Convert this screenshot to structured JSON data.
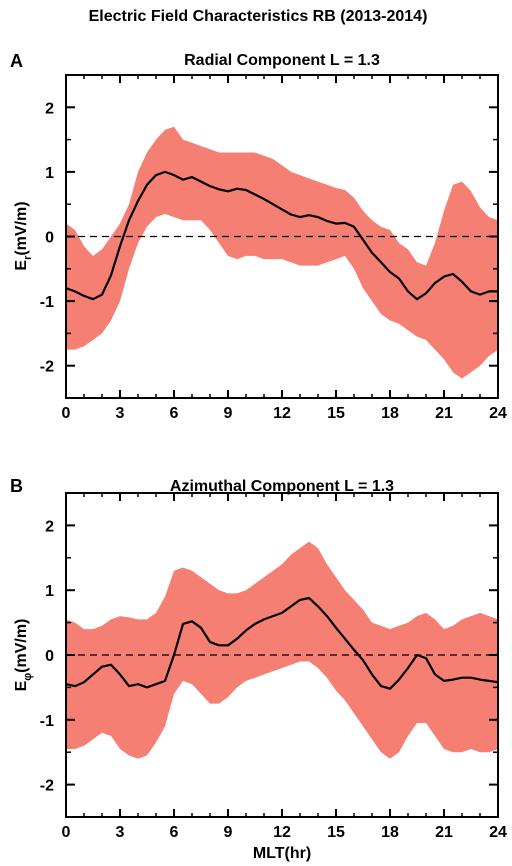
{
  "figure_title": "Electric Field Characteristics RB (2013-2014)",
  "colors": {
    "band": "#f47f72",
    "line": "#000000",
    "zero_line": "#000000"
  },
  "chart_data": [
    {
      "type": "line",
      "panel_label": "A",
      "title": "Radial Component L = 1.3",
      "ylabel_main": "E",
      "ylabel_sub": "r",
      "ylabel_tail": "(mV/m)",
      "xlabel": "",
      "xlim": [
        0,
        24
      ],
      "ylim": [
        -2.5,
        2.5
      ],
      "xticks": [
        0,
        3,
        6,
        9,
        12,
        15,
        18,
        21,
        24
      ],
      "yticks": [
        -2,
        -1,
        0,
        1,
        2
      ],
      "grid": false,
      "reference_line": {
        "y": 0,
        "style": "dashed"
      },
      "series": [
        {
          "x": [
            0,
            0.5,
            1,
            1.5,
            2,
            2.5,
            3,
            3.5,
            4,
            4.5,
            5,
            5.5,
            6,
            6.5,
            7,
            7.5,
            8,
            8.5,
            9,
            9.5,
            10,
            10.5,
            11,
            11.5,
            12,
            12.5,
            13,
            13.5,
            14,
            14.5,
            15,
            15.5,
            16,
            16.5,
            17,
            17.5,
            18,
            18.5,
            19,
            19.5,
            20,
            20.5,
            21,
            21.5,
            22,
            22.5,
            23,
            23.5,
            24
          ],
          "mean": [
            -0.8,
            -0.85,
            -0.92,
            -0.97,
            -0.9,
            -0.6,
            -0.15,
            0.25,
            0.55,
            0.8,
            0.95,
            1.0,
            0.95,
            0.88,
            0.92,
            0.85,
            0.78,
            0.73,
            0.7,
            0.74,
            0.72,
            0.65,
            0.58,
            0.5,
            0.42,
            0.34,
            0.3,
            0.33,
            0.3,
            0.24,
            0.2,
            0.21,
            0.15,
            -0.05,
            -0.25,
            -0.4,
            -0.55,
            -0.65,
            -0.85,
            -0.97,
            -0.88,
            -0.72,
            -0.62,
            -0.58,
            -0.7,
            -0.85,
            -0.9,
            -0.85,
            -0.85
          ],
          "upper": [
            0.2,
            0.1,
            -0.15,
            -0.3,
            -0.2,
            0.0,
            0.2,
            0.5,
            1.0,
            1.3,
            1.5,
            1.65,
            1.7,
            1.5,
            1.45,
            1.4,
            1.35,
            1.3,
            1.3,
            1.3,
            1.3,
            1.3,
            1.25,
            1.2,
            1.1,
            1.0,
            0.95,
            0.9,
            0.85,
            0.8,
            0.75,
            0.72,
            0.6,
            0.4,
            0.25,
            0.15,
            0.1,
            -0.1,
            -0.2,
            -0.4,
            -0.45,
            -0.1,
            0.4,
            0.8,
            0.85,
            0.7,
            0.45,
            0.3,
            0.25
          ],
          "lower": [
            -1.75,
            -1.75,
            -1.7,
            -1.6,
            -1.5,
            -1.3,
            -1.0,
            -0.5,
            -0.1,
            0.15,
            0.3,
            0.35,
            0.3,
            0.25,
            0.25,
            0.25,
            0.1,
            -0.1,
            -0.3,
            -0.35,
            -0.3,
            -0.3,
            -0.35,
            -0.35,
            -0.35,
            -0.4,
            -0.45,
            -0.45,
            -0.45,
            -0.4,
            -0.35,
            -0.3,
            -0.5,
            -0.8,
            -1.0,
            -1.2,
            -1.3,
            -1.35,
            -1.45,
            -1.55,
            -1.6,
            -1.75,
            -1.9,
            -2.1,
            -2.2,
            -2.1,
            -2.0,
            -1.85,
            -1.75
          ]
        }
      ]
    },
    {
      "type": "line",
      "panel_label": "B",
      "title": "Azimuthal Component L = 1.3",
      "ylabel_main": "E",
      "ylabel_sub": "φ",
      "ylabel_tail": "(mV/m)",
      "xlabel": "MLT(hr)",
      "xlim": [
        0,
        24
      ],
      "ylim": [
        -2.5,
        2.5
      ],
      "xticks": [
        0,
        3,
        6,
        9,
        12,
        15,
        18,
        21,
        24
      ],
      "yticks": [
        -2,
        -1,
        0,
        1,
        2
      ],
      "grid": false,
      "reference_line": {
        "y": 0,
        "style": "dashed"
      },
      "series": [
        {
          "x": [
            0,
            0.5,
            1,
            1.5,
            2,
            2.5,
            3,
            3.5,
            4,
            4.5,
            5,
            5.5,
            6,
            6.5,
            7,
            7.5,
            8,
            8.5,
            9,
            9.5,
            10,
            10.5,
            11,
            11.5,
            12,
            12.5,
            13,
            13.5,
            14,
            14.5,
            15,
            15.5,
            16,
            16.5,
            17,
            17.5,
            18,
            18.5,
            19,
            19.5,
            20,
            20.5,
            21,
            21.5,
            22,
            22.5,
            23,
            23.5,
            24
          ],
          "mean": [
            -0.45,
            -0.48,
            -0.42,
            -0.3,
            -0.18,
            -0.15,
            -0.3,
            -0.48,
            -0.45,
            -0.5,
            -0.45,
            -0.4,
            0.0,
            0.48,
            0.52,
            0.42,
            0.2,
            0.15,
            0.15,
            0.25,
            0.38,
            0.48,
            0.55,
            0.6,
            0.65,
            0.75,
            0.85,
            0.88,
            0.75,
            0.6,
            0.42,
            0.25,
            0.08,
            -0.08,
            -0.3,
            -0.48,
            -0.52,
            -0.38,
            -0.2,
            0.0,
            -0.05,
            -0.3,
            -0.4,
            -0.38,
            -0.35,
            -0.35,
            -0.38,
            -0.4,
            -0.42
          ],
          "upper": [
            0.55,
            0.5,
            0.4,
            0.4,
            0.45,
            0.55,
            0.6,
            0.58,
            0.55,
            0.55,
            0.65,
            0.9,
            1.3,
            1.35,
            1.3,
            1.2,
            1.1,
            1.0,
            0.95,
            0.95,
            1.0,
            1.1,
            1.2,
            1.3,
            1.4,
            1.55,
            1.65,
            1.75,
            1.65,
            1.4,
            1.2,
            1.0,
            0.85,
            0.7,
            0.5,
            0.45,
            0.4,
            0.45,
            0.5,
            0.6,
            0.65,
            0.55,
            0.4,
            0.45,
            0.55,
            0.6,
            0.65,
            0.6,
            0.55
          ],
          "lower": [
            -1.45,
            -1.45,
            -1.4,
            -1.3,
            -1.2,
            -1.25,
            -1.45,
            -1.55,
            -1.6,
            -1.55,
            -1.35,
            -1.1,
            -0.6,
            -0.4,
            -0.45,
            -0.6,
            -0.75,
            -0.75,
            -0.65,
            -0.5,
            -0.4,
            -0.35,
            -0.3,
            -0.25,
            -0.2,
            -0.15,
            -0.1,
            -0.1,
            -0.2,
            -0.35,
            -0.55,
            -0.7,
            -0.9,
            -1.1,
            -1.3,
            -1.5,
            -1.6,
            -1.5,
            -1.25,
            -1.05,
            -1.05,
            -1.25,
            -1.45,
            -1.5,
            -1.5,
            -1.45,
            -1.5,
            -1.5,
            -1.45
          ]
        }
      ]
    }
  ]
}
